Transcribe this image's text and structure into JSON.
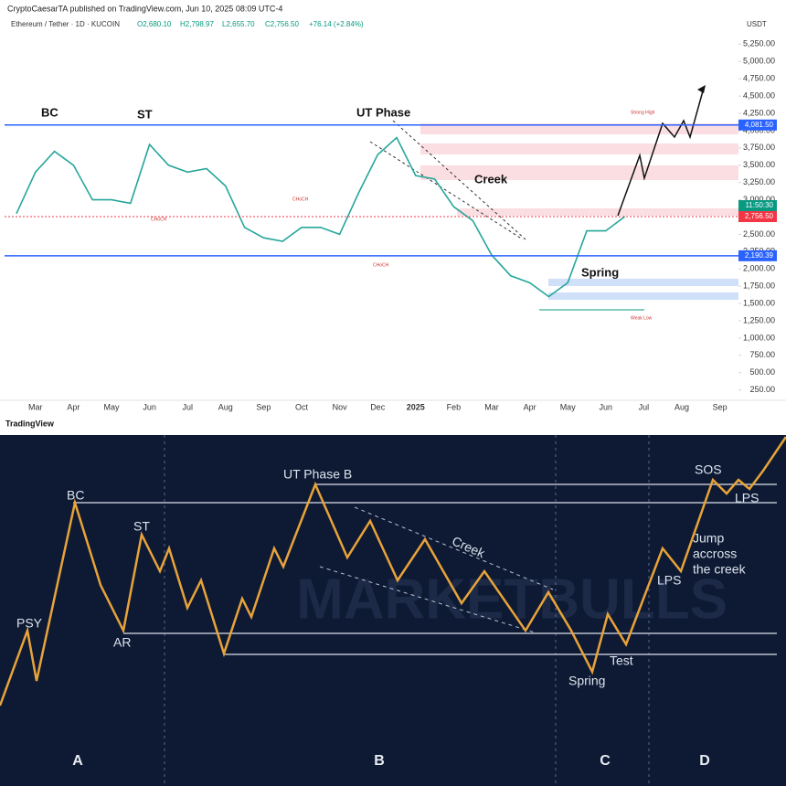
{
  "header": {
    "publisher": "CryptoCaesarTA published on TradingView.com, Jun 10, 2025 08:09 UTC-4",
    "symbol": "Ethereum / Tether · 1D · KUCOIN",
    "ohlc": [
      "O2,680.10",
      "H2,798.97",
      "L2,655.70",
      "C2,756.50"
    ],
    "change": "+76.14 (+2.84%)",
    "currency": "USDT"
  },
  "chart_data": {
    "type": "line",
    "categories": [
      null,
      "Mar",
      null,
      "Apr",
      null,
      "May",
      null,
      "Jun",
      null,
      "Jul",
      null,
      "Aug",
      null,
      "Sep",
      null,
      "Oct",
      null,
      "Nov",
      null,
      "Dec",
      null,
      "2025",
      null,
      "Feb",
      null,
      "Mar",
      null,
      "Apr",
      null,
      "May",
      null,
      "Jun",
      null,
      "Jul",
      null,
      "Aug",
      null,
      "Sep"
    ],
    "values": [
      2800,
      3400,
      3700,
      3500,
      3000,
      3000,
      2950,
      3800,
      3500,
      3400,
      3450,
      3200,
      2600,
      2450,
      2400,
      2600,
      2600,
      2500,
      3100,
      3650,
      3900,
      3350,
      3300,
      2900,
      2700,
      2200,
      1900,
      1800,
      1600,
      1800,
      2550,
      2550,
      2756.5,
      null,
      null,
      null,
      null,
      null
    ],
    "color": "#26a69a",
    "ylim": [
      100,
      5400
    ],
    "yticks": [
      {
        "value": 250,
        "label": "250.00"
      },
      {
        "value": 500,
        "label": "500.00"
      },
      {
        "value": 750,
        "label": "750.00"
      },
      {
        "value": 1000,
        "label": "1,000.00"
      },
      {
        "value": 1250,
        "label": "1,250.00"
      },
      {
        "value": 1500,
        "label": "1,500.00"
      },
      {
        "value": 1750,
        "label": "1,750.00"
      },
      {
        "value": 2000,
        "label": "2,000.00"
      },
      {
        "value": 2250,
        "label": "2,250.00"
      },
      {
        "value": 2500,
        "label": "2,500.00"
      },
      {
        "value": 2750,
        "label": "2,750.00"
      },
      {
        "value": 3000,
        "label": "3,000.00"
      },
      {
        "value": 3250,
        "label": "3,250.00"
      },
      {
        "value": 3500,
        "label": "3,500.00"
      },
      {
        "value": 3750,
        "label": "3,750.00"
      },
      {
        "value": 4000,
        "label": "4,000.00"
      },
      {
        "value": 4250,
        "label": "4,250.00"
      },
      {
        "value": 4500,
        "label": "4,500.00"
      },
      {
        "value": 4750,
        "label": "4,750.00"
      },
      {
        "value": 5000,
        "label": "5,000.00"
      },
      {
        "value": 5250,
        "label": "5,250.00"
      }
    ],
    "grid": false,
    "price_levels": [
      {
        "value": 4081.5,
        "label": "4,081.50",
        "color": "#2962ff"
      },
      {
        "value": 2756.5,
        "label": "2,756.50",
        "color": "#f23645"
      },
      {
        "value": 2190.39,
        "label": "2,190.39",
        "color": "#2962ff"
      }
    ],
    "countdown": "11:50:30",
    "annotations": [
      "BC",
      "ST",
      "UT Phase",
      "Creek",
      "Spring"
    ],
    "small_labels": [
      "Strong High",
      "Weak Low",
      "CHoCH",
      "CHoCH",
      "CHoCH"
    ]
  },
  "footer": "TradingView",
  "diagram": {
    "labels": [
      "PSY",
      "BC",
      "AR",
      "ST",
      "UT Phase B",
      "Creek",
      "Spring",
      "Test",
      "LPS",
      "SOS",
      "LPS"
    ],
    "note": [
      "Jump",
      "accross",
      "the creek"
    ],
    "watermark": "MARKETBULLS",
    "phases": [
      "A",
      "B",
      "C",
      "D"
    ]
  }
}
